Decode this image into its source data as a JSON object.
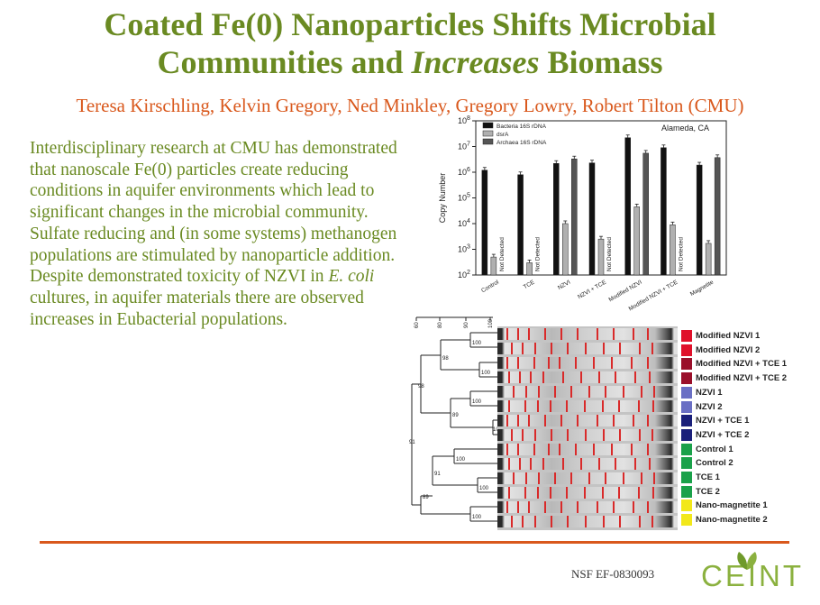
{
  "header": {
    "title_line1": "Coated Fe(0) Nanoparticles Shifts Microbial",
    "title_line2_a": "Communities and ",
    "title_line2_italic": "Increases",
    "title_line2_b": " Biomass",
    "authors": "Teresa Kirschling, Kelvin Gregory, Ned Minkley, Gregory Lowry, Robert Tilton (CMU)"
  },
  "body": {
    "p1": "Interdisciplinary research at CMU has demonstrated that nanoscale Fe(0) particles create reducing conditions in aquifer environments which lead to significant changes in the microbial community. Sulfate reducing and  (in some systems) methanogen populations are stimulated by nanoparticle addition.  Despite demonstrated toxicity of NZVI in ",
    "p1_italic": "E. coli",
    "p1_end": " cultures, in aquifer materials there are observed increases in Eubacterial populations."
  },
  "chart_data": {
    "type": "bar",
    "title": "Alameda, CA",
    "ylabel": "Copy Number",
    "yscale": "log",
    "ylim": [
      100,
      100000000
    ],
    "yticks": [
      "10^2",
      "10^3",
      "10^4",
      "10^5",
      "10^6",
      "10^7",
      "10^8"
    ],
    "categories": [
      "Control",
      "TCE",
      "NZVI",
      "NZVI + TCE",
      "Modified NZVI",
      "Modified NZVI + TCE",
      "Magnetite"
    ],
    "series": [
      {
        "name": "Bacteria 16S rDNA",
        "color": "#111111",
        "values": [
          1200000,
          800000,
          2200000,
          2300000,
          22000000,
          9000000,
          1900000
        ]
      },
      {
        "name": "dsrA",
        "color": "#b0b0b0",
        "values": [
          500,
          300,
          10000,
          2500,
          45000,
          9000,
          1700
        ]
      },
      {
        "name": "Archaea 16S rDNA",
        "color": "#555555",
        "values": [
          null,
          null,
          3300000,
          null,
          5500000,
          null,
          3700000
        ]
      }
    ],
    "annotations": [
      {
        "category": "Control",
        "text": "Not Detected"
      },
      {
        "category": "TCE",
        "text": "Not Detected"
      },
      {
        "category": "NZVI + TCE",
        "text": "Not Detected"
      },
      {
        "category": "Modified NZVI + TCE",
        "text": "Not Detected"
      }
    ],
    "legend_position": "top-left",
    "grid": false
  },
  "dendrogram": {
    "scale_ticks": [
      "60",
      "80",
      "90",
      "100"
    ],
    "node_labels": [
      "100",
      "98",
      "100",
      "98",
      "100",
      "89",
      "100",
      "91",
      "100",
      "91",
      "100",
      "89",
      "100"
    ]
  },
  "gel_legend": [
    {
      "label": "Modified NZVI 1",
      "color": "#e0102a"
    },
    {
      "label": "Modified NZVI 2",
      "color": "#e0102a"
    },
    {
      "label": "Modified NZVI + TCE 1",
      "color": "#9a0f2a"
    },
    {
      "label": "Modified NZVI + TCE 2",
      "color": "#9a0f2a"
    },
    {
      "label": "NZVI 1",
      "color": "#6a6fc4"
    },
    {
      "label": "NZVI 2",
      "color": "#6a6fc4"
    },
    {
      "label": "NZVI + TCE 1",
      "color": "#1a1f7a"
    },
    {
      "label": "NZVI + TCE 2",
      "color": "#1a1f7a"
    },
    {
      "label": "Control 1",
      "color": "#1aa14a"
    },
    {
      "label": "Control 2",
      "color": "#1aa14a"
    },
    {
      "label": "TCE 1",
      "color": "#1aa14a"
    },
    {
      "label": "TCE 2",
      "color": "#1aa14a"
    },
    {
      "label": "Nano-magnetite 1",
      "color": "#f2e81a"
    },
    {
      "label": "Nano-magnetite 2",
      "color": "#f2e81a"
    }
  ],
  "footer": {
    "grant": "NSF EF-0830093",
    "logo_text": "CEINT"
  }
}
